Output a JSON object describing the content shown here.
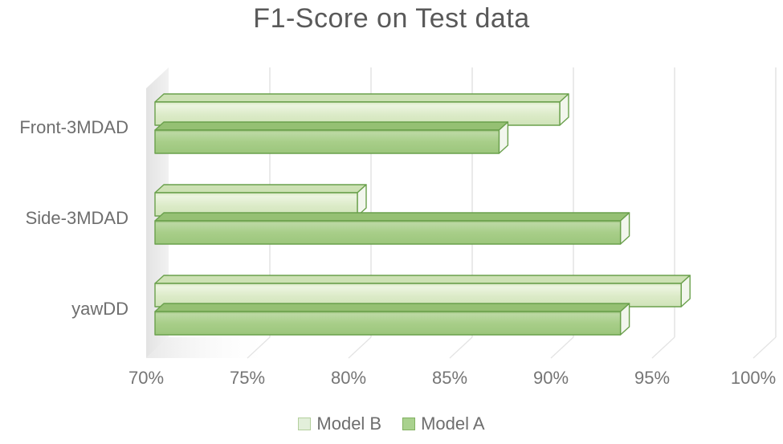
{
  "title": "F1-Score on Test data",
  "chart_data": {
    "type": "bar",
    "orientation": "horizontal",
    "style": "3d-bar",
    "title": "F1-Score on Test data",
    "categories": [
      "Front-3MDAD",
      "Side-3MDAD",
      "yawDD"
    ],
    "series": [
      {
        "name": "Model B",
        "color": "#e2efda",
        "border": "#6aa04c",
        "values": [
          90,
          80,
          96
        ]
      },
      {
        "name": "Model A",
        "color": "#a9d18e",
        "border": "#6aa04c",
        "values": [
          87,
          93,
          93
        ]
      }
    ],
    "xlabel": "",
    "ylabel": "",
    "axis": {
      "min": 70,
      "max": 100,
      "step": 5,
      "format": "percent"
    },
    "ticks": [
      "70%",
      "75%",
      "80%",
      "85%",
      "90%",
      "95%",
      "100%"
    ],
    "grid": true,
    "gridline_color": "#dcdcdc",
    "wall_color": "#e9e9e9",
    "text_color": "#6e6e6e",
    "title_color": "#595959",
    "legend": {
      "position": "bottom",
      "entries": [
        "Model B",
        "Model A"
      ]
    }
  }
}
